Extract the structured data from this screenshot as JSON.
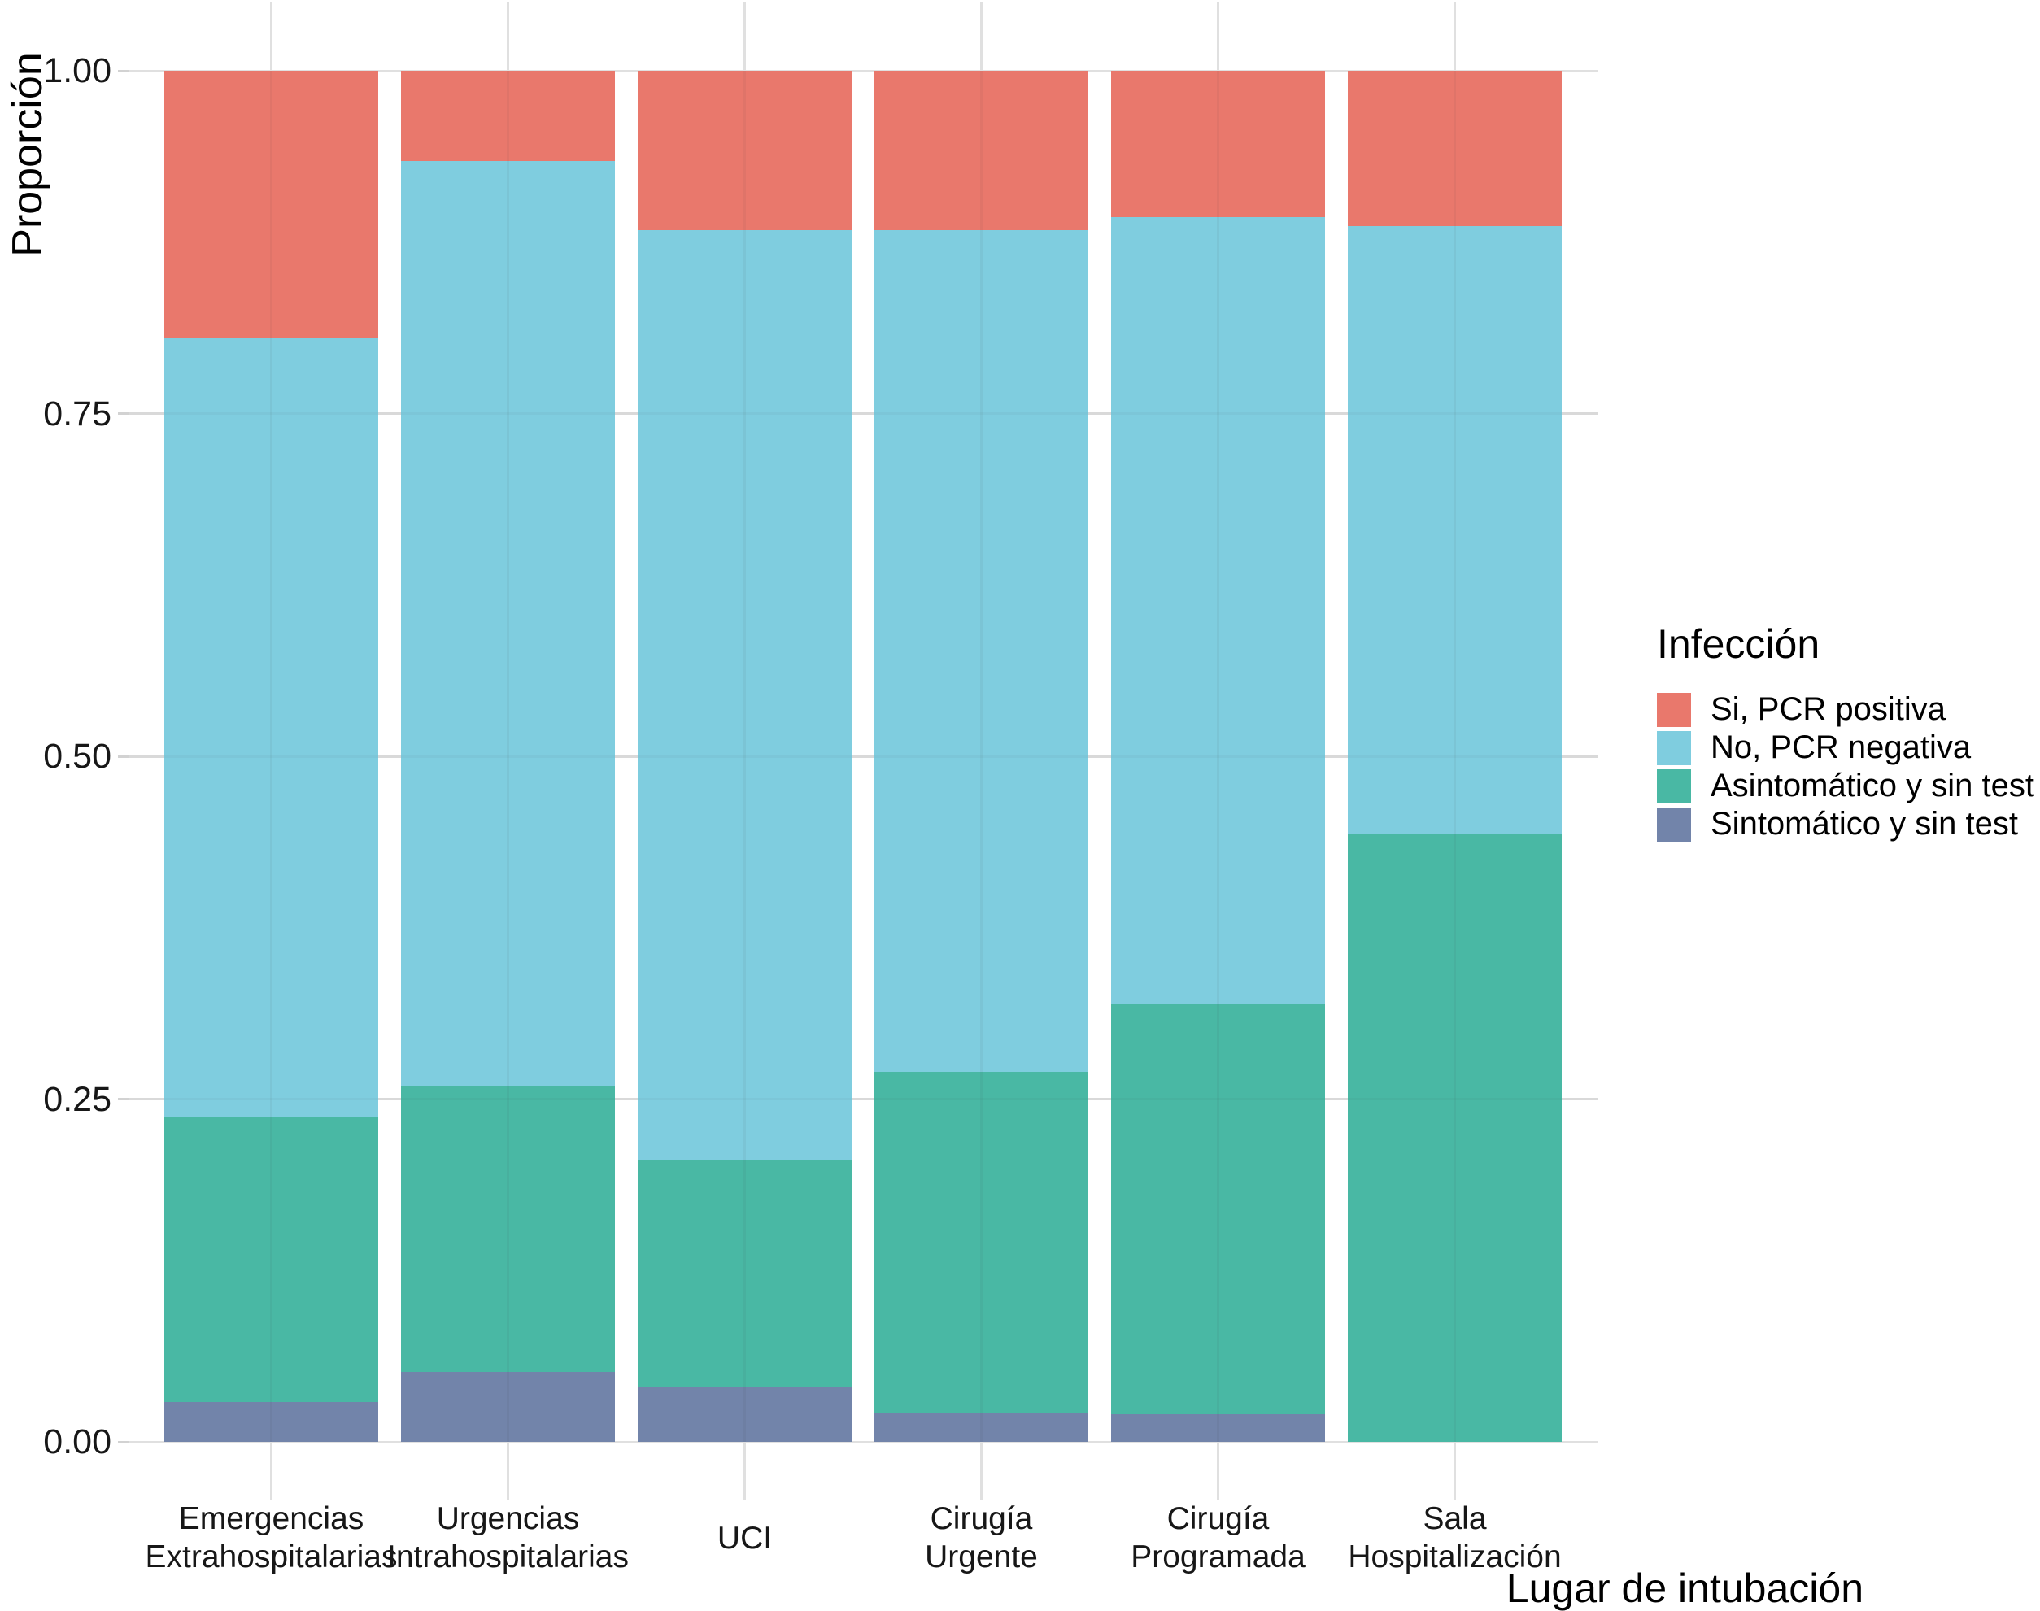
{
  "chart_data": {
    "type": "bar",
    "stacked": true,
    "orientation": "vertical",
    "title": "",
    "xlabel": "Lugar de intubación",
    "ylabel": "Proporción",
    "ylim": [
      0,
      1
    ],
    "grid": true,
    "yticks": [
      {
        "label": "0.00",
        "value": 0.0
      },
      {
        "label": "0.25",
        "value": 0.25
      },
      {
        "label": "0.50",
        "value": 0.5
      },
      {
        "label": "0.75",
        "value": 0.75
      },
      {
        "label": "1.00",
        "value": 1.0
      }
    ],
    "categories": [
      "Emergencias Extrahospitalarias",
      "Urgencias Intrahospitalarias",
      "UCI",
      "Cirugía Urgente",
      "Cirugía Programada",
      "Sala Hospitalización"
    ],
    "category_label_lines": [
      [
        "Emergencias",
        "Extrahospitalarias"
      ],
      [
        "Urgencias",
        "Intrahospitalarias"
      ],
      [
        "UCI"
      ],
      [
        "Cirugía",
        "Urgente"
      ],
      [
        "Cirugía",
        "Programada"
      ],
      [
        "Sala",
        "Hospitalización"
      ]
    ],
    "series": [
      {
        "name": "Sintomático y sin test",
        "color": "#7284AA",
        "values": [
          0.029,
          0.051,
          0.04,
          0.021,
          0.02,
          0.0
        ]
      },
      {
        "name": "Asintomático y sin test",
        "color": "#49B8A4",
        "values": [
          0.208,
          0.208,
          0.165,
          0.249,
          0.299,
          0.443
        ]
      },
      {
        "name": "No, PCR negativa",
        "color": "#7FCDDF",
        "values": [
          0.568,
          0.675,
          0.679,
          0.614,
          0.574,
          0.444
        ]
      },
      {
        "name": "Si, PCR positiva",
        "color": "#E9786C",
        "values": [
          0.195,
          0.066,
          0.116,
          0.116,
          0.107,
          0.113
        ]
      }
    ],
    "legend": {
      "title": "Infección",
      "position": "right",
      "entries": [
        {
          "label": "Si, PCR positiva",
          "color": "#E9786C"
        },
        {
          "label": "No, PCR negativa",
          "color": "#7FCDDF"
        },
        {
          "label": "Asintomático y sin test",
          "color": "#49B8A4"
        },
        {
          "label": "Sintomático y sin test",
          "color": "#7284AA"
        }
      ]
    }
  }
}
